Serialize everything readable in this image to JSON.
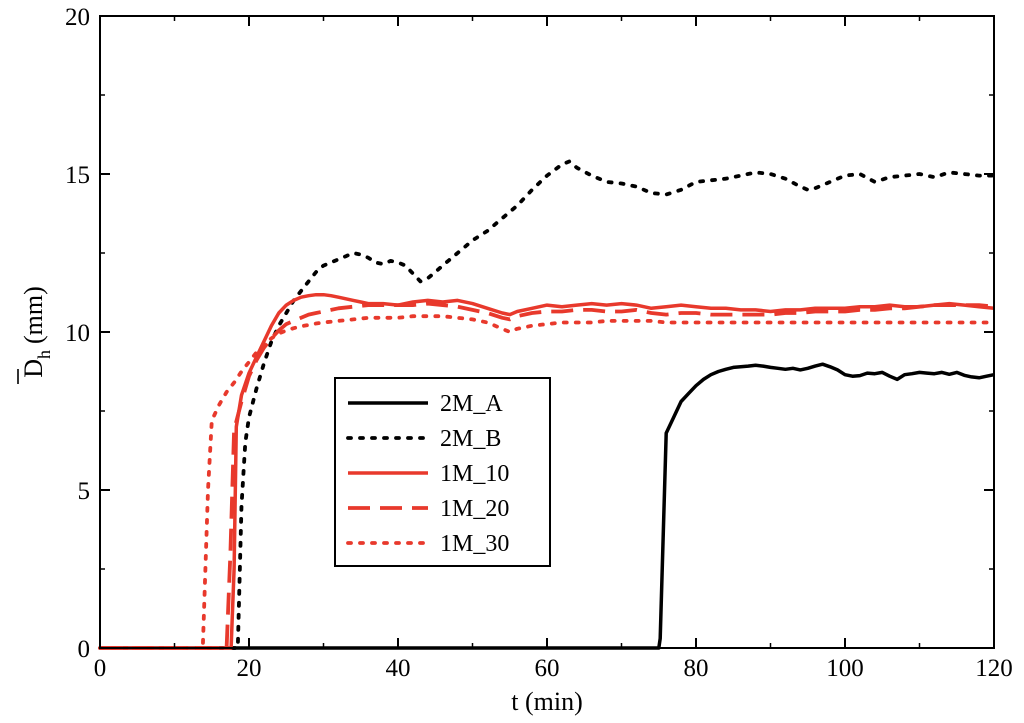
{
  "chart_data": {
    "type": "line",
    "xlabel": "t (min)",
    "ylabel_main": "D",
    "ylabel_sub": "h",
    "ylabel_unit": "(mm)",
    "xlim": [
      0,
      120
    ],
    "ylim": [
      0,
      20
    ],
    "xticks": [
      0,
      20,
      40,
      60,
      80,
      100,
      120
    ],
    "yticks": [
      0,
      5,
      10,
      15,
      20
    ],
    "grid": false,
    "legend_position": "center-left",
    "series": [
      {
        "name": "2M_A",
        "color": "#000000",
        "style": "solid",
        "x": [
          0,
          75,
          75.2,
          76,
          77,
          78,
          79,
          80,
          81,
          82,
          83,
          84,
          85,
          86,
          87,
          88,
          89,
          90,
          91,
          92,
          93,
          94,
          95,
          96,
          97,
          98,
          99,
          100,
          101,
          102,
          103,
          104,
          105,
          106,
          107,
          108,
          109,
          110,
          111,
          112,
          113,
          114,
          115,
          116,
          117,
          118,
          119,
          120
        ],
        "y": [
          0,
          0,
          0.3,
          6.8,
          7.3,
          7.8,
          8.05,
          8.3,
          8.5,
          8.65,
          8.75,
          8.82,
          8.88,
          8.9,
          8.92,
          8.95,
          8.92,
          8.88,
          8.85,
          8.82,
          8.85,
          8.8,
          8.85,
          8.92,
          8.98,
          8.9,
          8.8,
          8.65,
          8.6,
          8.62,
          8.7,
          8.68,
          8.72,
          8.6,
          8.5,
          8.65,
          8.68,
          8.72,
          8.7,
          8.68,
          8.72,
          8.66,
          8.72,
          8.63,
          8.58,
          8.55,
          8.6,
          8.65
        ]
      },
      {
        "name": "2M_B",
        "color": "#000000",
        "style": "dotted",
        "x": [
          0,
          18.5,
          19,
          19.5,
          20,
          21,
          22,
          23,
          24,
          25,
          26,
          27,
          28,
          29,
          30,
          31,
          32,
          33,
          34,
          35,
          36,
          37,
          38,
          39,
          40,
          41,
          42,
          43,
          44,
          45,
          46,
          47,
          48,
          49,
          50,
          52,
          54,
          56,
          58,
          60,
          62,
          63,
          64,
          66,
          68,
          70,
          72,
          74,
          76,
          78,
          80,
          82,
          84,
          86,
          88,
          90,
          92,
          94,
          95,
          96,
          98,
          100,
          102,
          104,
          106,
          108,
          110,
          112,
          114,
          116,
          118,
          120
        ],
        "y": [
          0,
          0,
          4.5,
          6.5,
          7.3,
          8.2,
          9.0,
          9.7,
          10.2,
          10.6,
          11.0,
          11.3,
          11.6,
          11.9,
          12.1,
          12.2,
          12.3,
          12.4,
          12.5,
          12.45,
          12.35,
          12.2,
          12.15,
          12.25,
          12.2,
          12.1,
          11.85,
          11.6,
          11.7,
          11.9,
          12.1,
          12.3,
          12.5,
          12.7,
          12.9,
          13.2,
          13.6,
          14.0,
          14.5,
          14.95,
          15.3,
          15.4,
          15.2,
          14.95,
          14.75,
          14.7,
          14.6,
          14.4,
          14.35,
          14.5,
          14.75,
          14.8,
          14.85,
          14.95,
          15.05,
          15.0,
          14.85,
          14.6,
          14.5,
          14.55,
          14.75,
          14.95,
          15.0,
          14.75,
          14.9,
          14.95,
          15.0,
          14.9,
          15.05,
          15.0,
          14.95,
          14.95
        ]
      },
      {
        "name": "1M_10",
        "color": "#e8392c",
        "style": "solid",
        "x": [
          0,
          17.6,
          18,
          18.3,
          19,
          20,
          21,
          22,
          23,
          24,
          25,
          26,
          27,
          28,
          29,
          30,
          31,
          32,
          33,
          34,
          35,
          36,
          38,
          40,
          42,
          44,
          46,
          48,
          50,
          52,
          54,
          55,
          56,
          58,
          60,
          62,
          64,
          66,
          68,
          70,
          72,
          74,
          76,
          78,
          80,
          82,
          84,
          86,
          88,
          90,
          92,
          94,
          96,
          98,
          100,
          102,
          104,
          106,
          108,
          110,
          112,
          114,
          116,
          118,
          120
        ],
        "y": [
          0,
          0,
          2.5,
          7.0,
          8.0,
          8.7,
          9.2,
          9.7,
          10.2,
          10.6,
          10.85,
          11.0,
          11.1,
          11.15,
          11.18,
          11.18,
          11.15,
          11.1,
          11.05,
          11.0,
          10.95,
          10.9,
          10.9,
          10.85,
          10.95,
          11.0,
          10.95,
          11.0,
          10.9,
          10.75,
          10.6,
          10.55,
          10.65,
          10.75,
          10.85,
          10.8,
          10.85,
          10.9,
          10.85,
          10.9,
          10.85,
          10.75,
          10.8,
          10.85,
          10.8,
          10.75,
          10.75,
          10.7,
          10.7,
          10.65,
          10.7,
          10.7,
          10.75,
          10.75,
          10.75,
          10.8,
          10.8,
          10.85,
          10.8,
          10.8,
          10.85,
          10.9,
          10.85,
          10.8,
          10.75
        ]
      },
      {
        "name": "1M_20",
        "color": "#e8392c",
        "style": "dashed",
        "x": [
          0,
          17.0,
          17.5,
          18,
          19,
          20,
          21,
          22,
          23,
          24,
          25,
          26,
          27,
          28,
          29,
          30,
          32,
          34,
          36,
          38,
          40,
          42,
          44,
          46,
          48,
          50,
          52,
          54,
          55,
          56,
          58,
          60,
          62,
          64,
          66,
          68,
          70,
          72,
          74,
          76,
          78,
          80,
          82,
          84,
          86,
          88,
          90,
          92,
          94,
          96,
          98,
          100,
          102,
          104,
          106,
          108,
          110,
          112,
          114,
          116,
          118,
          120
        ],
        "y": [
          0,
          0,
          3.0,
          6.9,
          7.8,
          8.6,
          9.1,
          9.5,
          9.8,
          10.05,
          10.25,
          10.35,
          10.45,
          10.55,
          10.6,
          10.65,
          10.75,
          10.8,
          10.85,
          10.85,
          10.85,
          10.85,
          10.9,
          10.85,
          10.8,
          10.7,
          10.6,
          10.45,
          10.4,
          10.5,
          10.6,
          10.65,
          10.65,
          10.7,
          10.7,
          10.65,
          10.65,
          10.7,
          10.6,
          10.55,
          10.6,
          10.6,
          10.55,
          10.55,
          10.55,
          10.55,
          10.55,
          10.6,
          10.6,
          10.65,
          10.65,
          10.65,
          10.7,
          10.7,
          10.75,
          10.75,
          10.8,
          10.85,
          10.85,
          10.85,
          10.85,
          10.8
        ]
      },
      {
        "name": "1M_30",
        "color": "#e8392c",
        "style": "dotted",
        "x": [
          0,
          13.8,
          14.5,
          15,
          16,
          17,
          18,
          19,
          20,
          21,
          22,
          23,
          24,
          25,
          26,
          27,
          28,
          29,
          30,
          32,
          34,
          36,
          38,
          40,
          42,
          44,
          46,
          48,
          50,
          52,
          54,
          55,
          56,
          58,
          60,
          62,
          64,
          66,
          68,
          70,
          72,
          74,
          76,
          78,
          80,
          82,
          84,
          86,
          88,
          90,
          92,
          94,
          96,
          98,
          100,
          102,
          104,
          106,
          108,
          110,
          112,
          114,
          116,
          118,
          120
        ],
        "y": [
          0,
          0,
          5.0,
          7.2,
          7.7,
          8.1,
          8.4,
          8.75,
          9.05,
          9.35,
          9.6,
          9.8,
          9.95,
          10.05,
          10.12,
          10.18,
          10.22,
          10.27,
          10.3,
          10.35,
          10.4,
          10.45,
          10.45,
          10.45,
          10.5,
          10.5,
          10.5,
          10.45,
          10.4,
          10.3,
          10.1,
          10.0,
          10.1,
          10.2,
          10.25,
          10.3,
          10.3,
          10.3,
          10.35,
          10.35,
          10.35,
          10.35,
          10.3,
          10.3,
          10.3,
          10.3,
          10.3,
          10.3,
          10.3,
          10.3,
          10.3,
          10.3,
          10.3,
          10.3,
          10.3,
          10.3,
          10.3,
          10.3,
          10.3,
          10.3,
          10.3,
          10.3,
          10.3,
          10.3,
          10.3
        ]
      }
    ]
  }
}
